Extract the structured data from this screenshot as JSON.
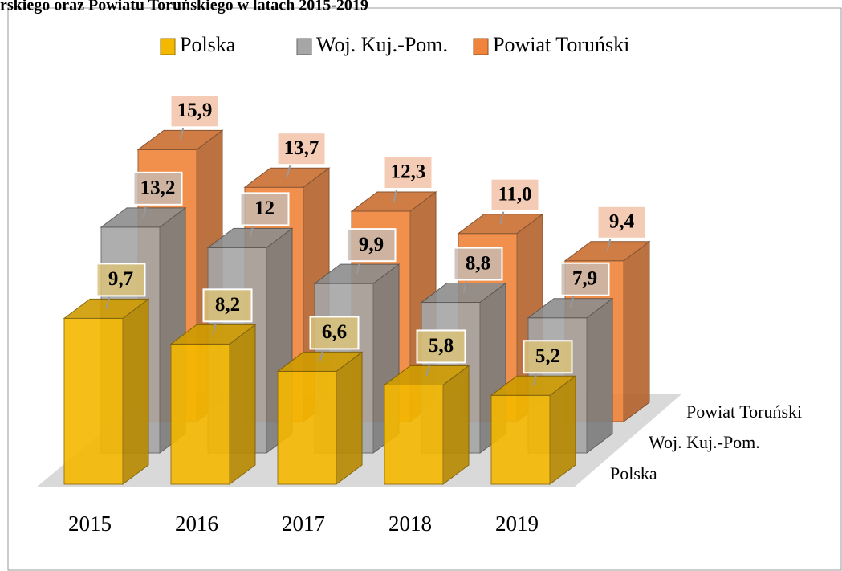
{
  "chart_data": {
    "type": "bar3d",
    "title": "rskiego oraz Powiatu Toruńskiego w latach 2015-2019",
    "categories": [
      "2015",
      "2016",
      "2017",
      "2018",
      "2019"
    ],
    "series": [
      {
        "name": "Polska",
        "color": "#f5b800",
        "values": [
          9.7,
          8.2,
          6.6,
          5.8,
          5.2
        ],
        "value_labels": [
          "9,7",
          "8,2",
          "6,6",
          "5,8",
          "5,2"
        ]
      },
      {
        "name": "Woj. Kuj.-Pom.",
        "color": "#a6a6a6",
        "values": [
          13.2,
          12,
          9.9,
          8.8,
          7.9
        ],
        "value_labels": [
          "13,2",
          "12",
          "9,9",
          "8,8",
          "7,9"
        ]
      },
      {
        "name": "Powiat Toruński",
        "color": "#f0843a",
        "values": [
          15.9,
          13.7,
          12.3,
          11.0,
          9.4
        ],
        "value_labels": [
          "15,9",
          "13,7",
          "12,3",
          "11,0",
          "9,4"
        ]
      }
    ],
    "legend": "top"
  }
}
